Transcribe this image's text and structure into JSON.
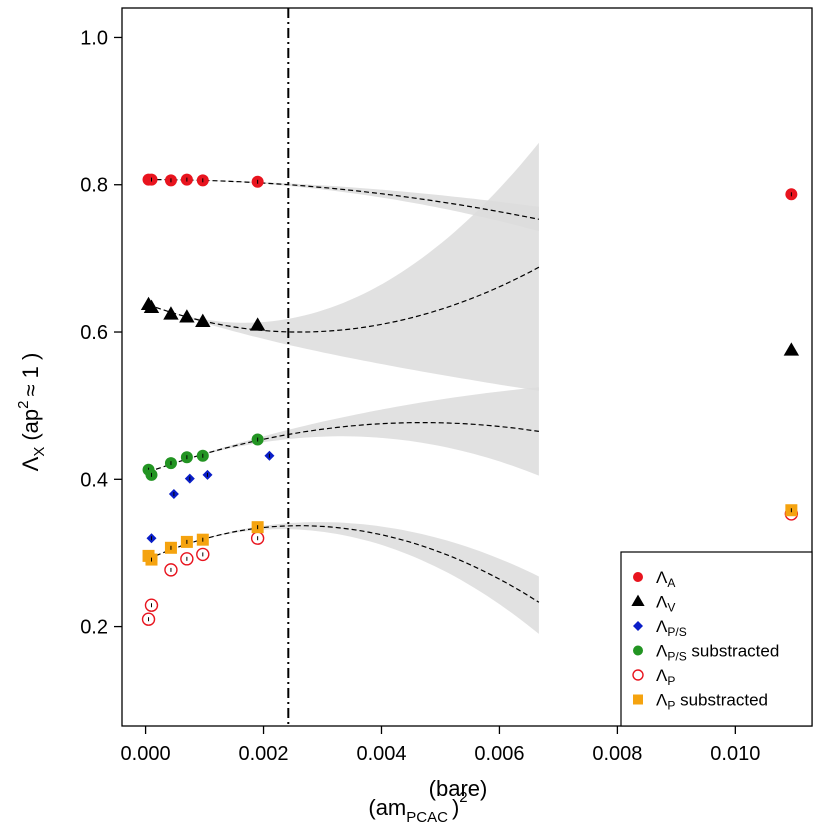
{
  "chart_data": {
    "type": "scatter",
    "xlabel": {
      "base": "(am",
      "sup": "(bare)",
      "sub": "PCAC",
      "close": ")",
      "pow": "2"
    },
    "ylabel": {
      "base": "Λ",
      "sub": "X",
      "rest": "(ap",
      "pow": "2",
      "approx": "≈ 1 )"
    },
    "xlim": [
      -0.0004,
      0.0113
    ],
    "ylim": [
      0.065,
      1.04
    ],
    "x_ticks": [
      0.0,
      0.002,
      0.004,
      0.006,
      0.008,
      0.01
    ],
    "x_tick_labels": [
      "0.000",
      "0.002",
      "0.004",
      "0.006",
      "0.008",
      "0.010"
    ],
    "y_ticks": [
      0.2,
      0.4,
      0.6,
      0.8,
      1.0
    ],
    "y_tick_labels": [
      "0.2",
      "0.4",
      "0.6",
      "0.8",
      "1.0"
    ],
    "vline_x": 0.00242,
    "series": [
      {
        "key": "A",
        "name": "Λ",
        "sub": "A",
        "suffix": "",
        "marker": "circle",
        "color": "#e8141e",
        "x": [
          5e-05,
          0.0001,
          0.00043,
          0.0007,
          0.00097,
          0.0019,
          0.01095
        ],
        "y": [
          0.807,
          0.807,
          0.806,
          0.807,
          0.806,
          0.804,
          0.787
        ]
      },
      {
        "key": "V",
        "name": "Λ",
        "sub": "V",
        "suffix": "",
        "marker": "triangle",
        "color": "#000000",
        "x": [
          5e-05,
          0.0001,
          0.00043,
          0.0007,
          0.00097,
          0.0019,
          0.01095
        ],
        "y": [
          0.637,
          0.633,
          0.624,
          0.62,
          0.614,
          0.609,
          0.575
        ]
      },
      {
        "key": "PS",
        "name": "Λ",
        "sub": "P/S",
        "suffix": "",
        "marker": "diamond",
        "color": "#0a1ec8",
        "x": [
          0.0001,
          0.00048,
          0.00075,
          0.00105,
          0.0021
        ],
        "y": [
          0.32,
          0.38,
          0.401,
          0.406,
          0.432
        ]
      },
      {
        "key": "PSsub",
        "name": "Λ",
        "sub": "P/S",
        "suffix": " substracted",
        "marker": "circle",
        "color": "#229422",
        "x": [
          5e-05,
          0.0001,
          0.00043,
          0.0007,
          0.00097,
          0.0019
        ],
        "y": [
          0.413,
          0.406,
          0.422,
          0.43,
          0.432,
          0.454
        ]
      },
      {
        "key": "P",
        "name": "Λ",
        "sub": "P",
        "suffix": "",
        "marker": "open-circle",
        "color": "#e8141e",
        "x": [
          5e-05,
          0.0001,
          0.00043,
          0.0007,
          0.00097,
          0.0019,
          0.01095
        ],
        "y": [
          0.21,
          0.229,
          0.277,
          0.292,
          0.298,
          0.32,
          0.353
        ]
      },
      {
        "key": "Psub",
        "name": "Λ",
        "sub": "P",
        "suffix": " substracted",
        "marker": "square",
        "color": "#f5a30f",
        "x": [
          5e-05,
          0.0001,
          0.00043,
          0.0007,
          0.00097,
          0.0019,
          0.01095
        ],
        "y": [
          0.296,
          0.291,
          0.307,
          0.315,
          0.318,
          0.335,
          0.358
        ]
      }
    ],
    "fits": [
      {
        "name": "fit-A",
        "x0": 5e-05,
        "x1": 0.00667,
        "y0": 0.807,
        "y1": 0.753,
        "band_lo": [
          0.805,
          0.737
        ],
        "band_hi": [
          0.808,
          0.77
        ],
        "curve": "quad",
        "peak": 0.0
      },
      {
        "name": "fit-V",
        "x0": 5e-05,
        "x1": 0.00667,
        "y0": 0.637,
        "y1": 0.688,
        "band_lo": [
          0.637,
          0.52
        ],
        "band_hi": [
          0.637,
          0.857
        ],
        "curve": "min",
        "peak": 0.0026
      },
      {
        "name": "fit-PSsub",
        "x0": 5e-05,
        "x1": 0.00667,
        "y0": 0.41,
        "y1": 0.465,
        "band_lo": [
          0.41,
          0.405
        ],
        "band_hi": [
          0.41,
          0.525
        ],
        "curve": "max",
        "peak": 0.0047
      },
      {
        "name": "fit-Psub",
        "x0": 5e-05,
        "x1": 0.00667,
        "y0": 0.292,
        "y1": 0.233,
        "band_lo": [
          0.292,
          0.19
        ],
        "band_hi": [
          0.292,
          0.268
        ],
        "curve": "max",
        "peak": 0.0026
      }
    ]
  }
}
